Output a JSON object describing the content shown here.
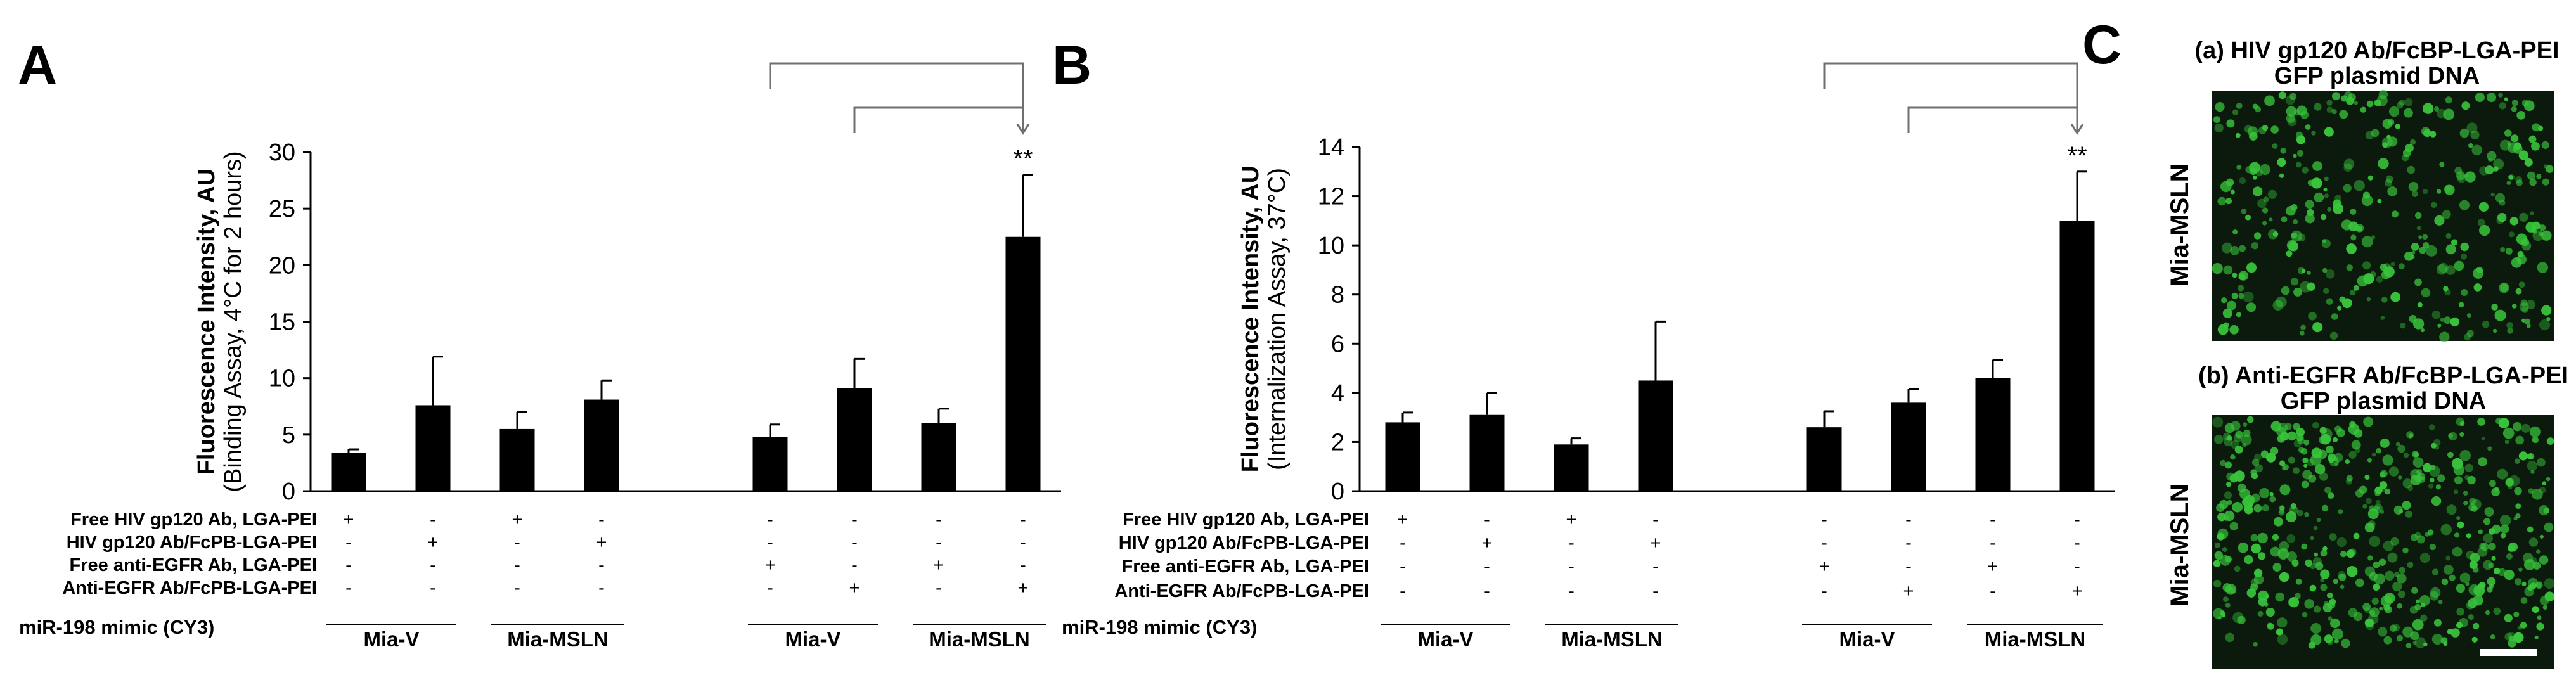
{
  "panels": {
    "A": {
      "letter": "A",
      "chart_data": {
        "type": "bar",
        "title": "",
        "ylabel_line1": "Fluorescence Intensity, AU",
        "ylabel_line2": "(Binding Assay, 4°C for 2 hours)",
        "ylim": [
          0,
          30
        ],
        "yticks": [
          0,
          5,
          10,
          15,
          20,
          25,
          30
        ],
        "values": [
          3.4,
          7.6,
          5.5,
          8.1,
          4.8,
          9.1,
          6.0,
          22.5
        ],
        "errors": [
          0.3,
          4.3,
          1.5,
          1.7,
          1.1,
          2.6,
          1.3,
          5.5
        ],
        "positions": [
          0,
          1,
          2,
          3,
          5,
          6,
          7,
          8
        ],
        "significance": [
          {
            "bar": 7,
            "label": "**"
          }
        ],
        "comparisons": [
          {
            "from": 5,
            "to": 7
          },
          {
            "from": 4,
            "to": 7
          }
        ]
      },
      "condition_rows": [
        {
          "label": "Free HIV gp120 Ab, LGA-PEI",
          "marks": [
            "+",
            "-",
            "+",
            "-",
            "-",
            "-",
            "-",
            "-"
          ]
        },
        {
          "label": "HIV gp120 Ab/FcPB-LGA-PEI",
          "marks": [
            "-",
            "+",
            "-",
            "+",
            "-",
            "-",
            "-",
            "-"
          ]
        },
        {
          "label": "Free anti-EGFR Ab, LGA-PEI",
          "marks": [
            "-",
            "-",
            "-",
            "-",
            "+",
            "-",
            "+",
            "-"
          ]
        },
        {
          "label": "Anti-EGFR Ab/FcPB-LGA-PEI",
          "marks": [
            "-",
            "-",
            "-",
            "-",
            "-",
            "+",
            "-",
            "+"
          ]
        }
      ],
      "mimic_label": "miR-198 mimic (CY3)",
      "groups": [
        "Mia-V",
        "Mia-MSLN",
        "Mia-V",
        "Mia-MSLN"
      ]
    },
    "B": {
      "letter": "B",
      "chart_data": {
        "type": "bar",
        "title": "",
        "ylabel_line1": "Fluorescence Intensity, AU",
        "ylabel_line2": "(Internalization Assay, 37°C)",
        "ylim": [
          0,
          14
        ],
        "yticks": [
          0,
          2,
          4,
          6,
          8,
          10,
          12,
          14
        ],
        "values": [
          2.8,
          3.1,
          1.9,
          4.5,
          2.6,
          3.6,
          4.6,
          11.0
        ],
        "errors": [
          0.4,
          0.9,
          0.25,
          2.4,
          0.65,
          0.55,
          0.75,
          2.0
        ],
        "positions": [
          0,
          1,
          2,
          3,
          5,
          6,
          7,
          8
        ],
        "significance": [
          {
            "bar": 7,
            "label": "**"
          }
        ],
        "comparisons": [
          {
            "from": 5,
            "to": 7
          },
          {
            "from": 4,
            "to": 7
          }
        ]
      },
      "condition_rows": [
        {
          "label": "Free HIV gp120 Ab, LGA-PEI",
          "marks": [
            "+",
            "-",
            "+",
            "-",
            "-",
            "-",
            "-",
            "-"
          ]
        },
        {
          "label": "HIV gp120 Ab/FcPB-LGA-PEI",
          "marks": [
            "-",
            "+",
            "-",
            "+",
            "-",
            "-",
            "-",
            "-"
          ]
        },
        {
          "label": "Free anti-EGFR Ab, LGA-PEI",
          "marks": [
            "-",
            "-",
            "-",
            "-",
            "+",
            "-",
            "+",
            "-"
          ]
        },
        {
          "label": "Anti-EGFR Ab/FcPB-LGA-PEI",
          "marks": [
            "-",
            "-",
            "-",
            "-",
            "-",
            "+",
            "-",
            "+"
          ]
        }
      ],
      "mimic_label": "miR-198 mimic (CY3)",
      "groups": [
        "Mia-V",
        "Mia-MSLN",
        "Mia-V",
        "Mia-MSLN"
      ]
    },
    "C": {
      "letter": "C",
      "a_title_line1": "(a) HIV gp120 Ab/FcBP-LGA-PEI",
      "a_title_line2": "GFP plasmid DNA",
      "a_side_label": "Mia-MSLN",
      "b_title_line1": "(b) Anti-EGFR Ab/FcBP-LGA-PEI",
      "b_title_line2": "GFP plasmid DNA",
      "b_side_label": "Mia-MSLN",
      "colors": {
        "background": "#0b1a0c",
        "cell": "#39c43c",
        "scale_bar": "#ffffff"
      }
    }
  },
  "colors": {
    "bar": "#000000",
    "axis": "#000000",
    "text": "#000000",
    "bracket": "#6f6f6f"
  }
}
